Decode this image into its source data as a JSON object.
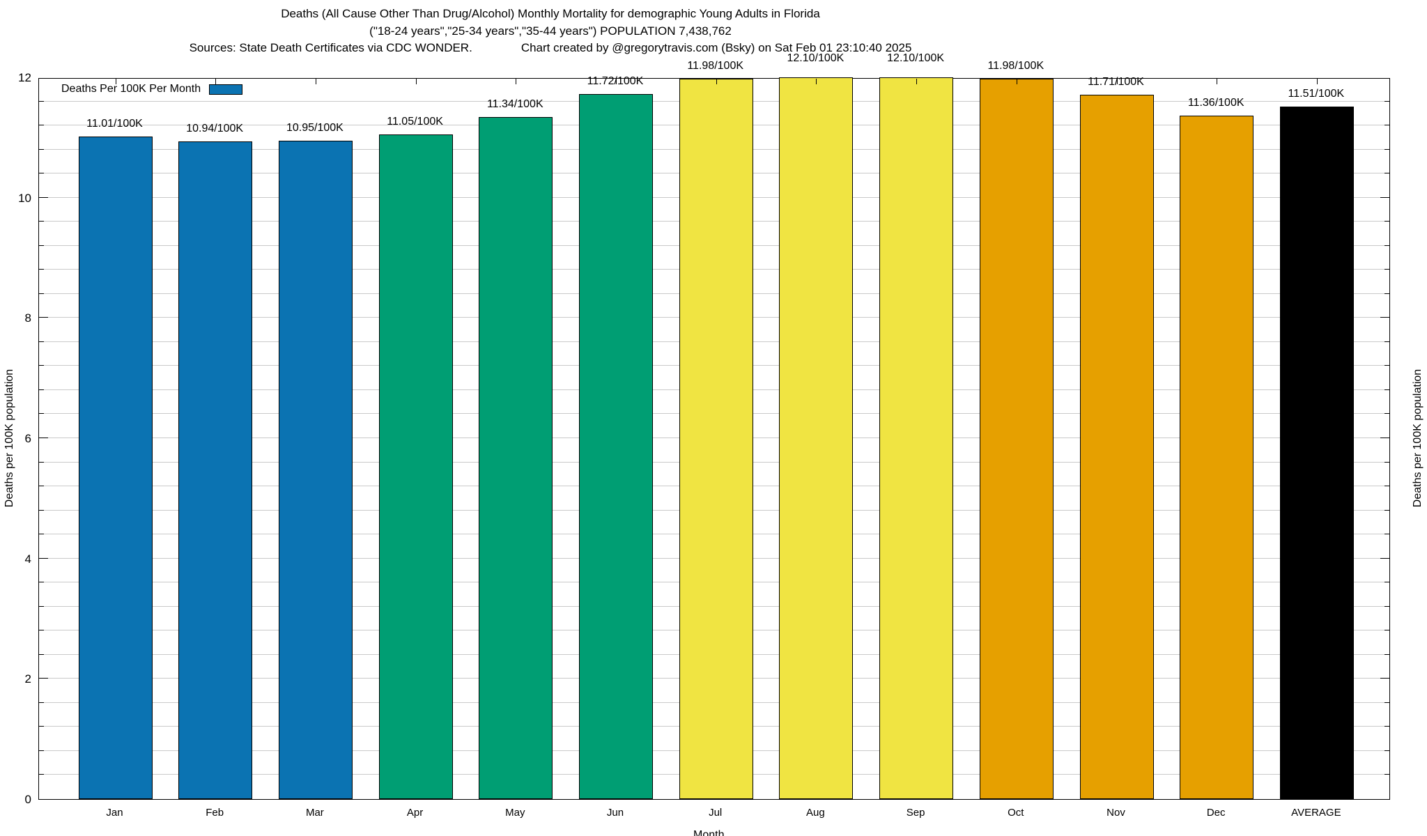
{
  "title": {
    "line1": "Deaths (All Cause Other Than Drug/Alcohol) Monthly Mortality for demographic Young Adults in Florida",
    "line2": "(\"18-24 years\",\"25-34 years\",\"35-44 years\") POPULATION 7,438,762",
    "line3_left": "Sources: State Death Certificates via CDC WONDER.",
    "line3_right": "Chart created by @gregorytravis.com (Bsky) on Sat Feb 01 23:10:40 2025"
  },
  "legend": {
    "label": "Deaths Per 100K Per Month",
    "swatch_color": "#0b73b2"
  },
  "chart_data": {
    "type": "bar",
    "title": "Deaths (All Cause Other Than Drug/Alcohol) Monthly Mortality for demographic Young Adults in Florida",
    "xlabel": "Month",
    "ylabel": "Deaths per 100K population",
    "ylabel_right": "Deaths per 100K population",
    "ylim": [
      0,
      12
    ],
    "ytick_major_step": 2,
    "ytick_minor_step": 0.4,
    "ytick_labels": [
      "0",
      "2",
      "4",
      "6",
      "8",
      "10",
      "12"
    ],
    "grid": "horizontal, light gray, at every 0.4",
    "legend_position": "top-left inside plot",
    "categories": [
      "Jan",
      "Feb",
      "Mar",
      "Apr",
      "May",
      "Jun",
      "Jul",
      "Aug",
      "Sep",
      "Oct",
      "Nov",
      "Dec",
      "AVERAGE"
    ],
    "values": [
      11.01,
      10.94,
      10.95,
      11.05,
      11.34,
      11.72,
      11.98,
      12.1,
      12.1,
      11.98,
      11.71,
      11.36,
      11.51
    ],
    "bar_labels": [
      "11.01/100K",
      "10.94/100K",
      "10.95/100K",
      "11.05/100K",
      "11.34/100K",
      "11.72/100K",
      "11.98/100K",
      "12.10/100K",
      "12.10/100K",
      "11.98/100K",
      "11.71/100K",
      "11.36/100K",
      "11.51/100K"
    ],
    "bar_colors": [
      "#0b73b2",
      "#0b73b2",
      "#0b73b2",
      "#009e73",
      "#009e73",
      "#009e73",
      "#f0e442",
      "#f0e442",
      "#f0e442",
      "#e6a000",
      "#e6a000",
      "#e6a000",
      "#000000"
    ],
    "colors": {
      "blue": "#0b73b2",
      "green": "#009e73",
      "yellow": "#f0e442",
      "orange": "#e6a000",
      "black": "#000000",
      "grid": "#c9c9c9"
    }
  }
}
